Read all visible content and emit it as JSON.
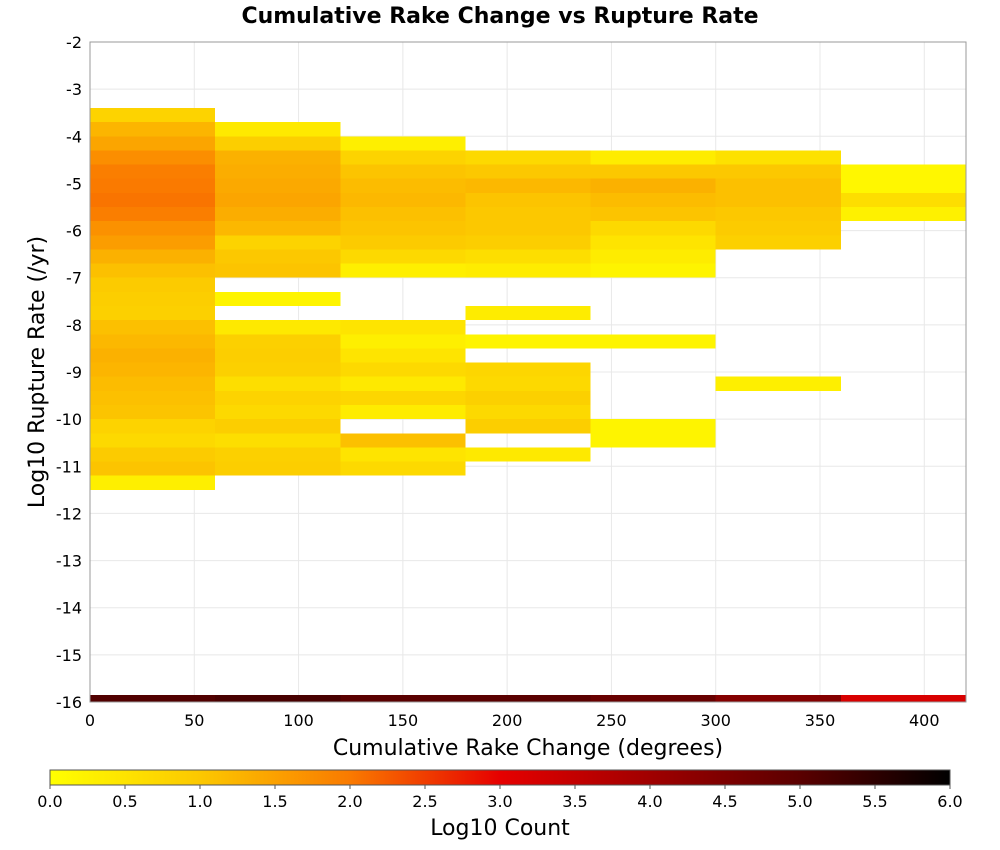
{
  "chart_data": {
    "type": "heatmap",
    "title": "Cumulative Rake Change vs Rupture Rate",
    "xlabel": "Cumulative Rake Change (degrees)",
    "ylabel": "Log10 Rupture Rate (/yr)",
    "xlim": [
      0,
      420
    ],
    "ylim": [
      -16,
      -2
    ],
    "x_bin_width": 60,
    "y_bin_height": 0.3,
    "x_ticks": [
      0,
      50,
      100,
      150,
      200,
      250,
      300,
      350,
      400
    ],
    "y_ticks": [
      -2,
      -3,
      -4,
      -5,
      -6,
      -7,
      -8,
      -9,
      -10,
      -11,
      -12,
      -13,
      -14,
      -15,
      -16
    ],
    "grid": true,
    "colorbar": {
      "label": "Log10 Count",
      "range": [
        0.0,
        6.0
      ],
      "ticks": [
        0.0,
        0.5,
        1.0,
        1.5,
        2.0,
        2.5,
        3.0,
        3.5,
        4.0,
        4.5,
        5.0,
        5.5,
        6.0
      ],
      "stops": [
        {
          "v": 0.0,
          "color": "#ffff00"
        },
        {
          "v": 1.0,
          "color": "#fcc800"
        },
        {
          "v": 2.0,
          "color": "#fa7a00"
        },
        {
          "v": 3.0,
          "color": "#e60000"
        },
        {
          "v": 4.0,
          "color": "#a00000"
        },
        {
          "v": 5.0,
          "color": "#5a0000"
        },
        {
          "v": 6.0,
          "color": "#000000"
        }
      ]
    },
    "cells": [
      {
        "x": 0,
        "y": -3.55,
        "v": 0.8
      },
      {
        "x": 0,
        "y": -3.85,
        "v": 1.25
      },
      {
        "x": 0,
        "y": -4.15,
        "v": 1.45
      },
      {
        "x": 0,
        "y": -4.45,
        "v": 1.75
      },
      {
        "x": 0,
        "y": -4.75,
        "v": 1.95
      },
      {
        "x": 0,
        "y": -5.05,
        "v": 2.0
      },
      {
        "x": 0,
        "y": -5.35,
        "v": 2.05
      },
      {
        "x": 0,
        "y": -5.65,
        "v": 1.95
      },
      {
        "x": 0,
        "y": -5.95,
        "v": 1.7
      },
      {
        "x": 0,
        "y": -6.25,
        "v": 1.55
      },
      {
        "x": 0,
        "y": -6.55,
        "v": 1.3
      },
      {
        "x": 0,
        "y": -6.85,
        "v": 1.1
      },
      {
        "x": 0,
        "y": -7.15,
        "v": 0.95
      },
      {
        "x": 0,
        "y": -7.45,
        "v": 0.9
      },
      {
        "x": 0,
        "y": -7.75,
        "v": 0.85
      },
      {
        "x": 0,
        "y": -8.05,
        "v": 1.1
      },
      {
        "x": 0,
        "y": -8.35,
        "v": 1.2
      },
      {
        "x": 0,
        "y": -8.65,
        "v": 1.3
      },
      {
        "x": 0,
        "y": -8.95,
        "v": 1.25
      },
      {
        "x": 0,
        "y": -9.25,
        "v": 1.15
      },
      {
        "x": 0,
        "y": -9.55,
        "v": 1.1
      },
      {
        "x": 0,
        "y": -9.85,
        "v": 1.05
      },
      {
        "x": 0,
        "y": -10.15,
        "v": 0.8
      },
      {
        "x": 0,
        "y": -10.45,
        "v": 0.7
      },
      {
        "x": 0,
        "y": -10.75,
        "v": 0.95
      },
      {
        "x": 0,
        "y": -11.05,
        "v": 1.05
      },
      {
        "x": 0,
        "y": -11.35,
        "v": 0.3
      },
      {
        "x": 60,
        "y": -3.85,
        "v": 0.4
      },
      {
        "x": 60,
        "y": -4.15,
        "v": 0.9
      },
      {
        "x": 60,
        "y": -4.45,
        "v": 1.3
      },
      {
        "x": 60,
        "y": -4.75,
        "v": 1.35
      },
      {
        "x": 60,
        "y": -5.05,
        "v": 1.4
      },
      {
        "x": 60,
        "y": -5.35,
        "v": 1.45
      },
      {
        "x": 60,
        "y": -5.65,
        "v": 1.35
      },
      {
        "x": 60,
        "y": -5.95,
        "v": 1.2
      },
      {
        "x": 60,
        "y": -6.25,
        "v": 0.8
      },
      {
        "x": 60,
        "y": -6.55,
        "v": 1.0
      },
      {
        "x": 60,
        "y": -6.85,
        "v": 1.05
      },
      {
        "x": 60,
        "y": -7.45,
        "v": 0.2
      },
      {
        "x": 60,
        "y": -8.05,
        "v": 0.4
      },
      {
        "x": 60,
        "y": -8.35,
        "v": 0.85
      },
      {
        "x": 60,
        "y": -8.65,
        "v": 0.9
      },
      {
        "x": 60,
        "y": -8.95,
        "v": 0.85
      },
      {
        "x": 60,
        "y": -9.25,
        "v": 0.6
      },
      {
        "x": 60,
        "y": -9.55,
        "v": 0.8
      },
      {
        "x": 60,
        "y": -9.85,
        "v": 0.7
      },
      {
        "x": 60,
        "y": -10.15,
        "v": 0.9
      },
      {
        "x": 60,
        "y": -10.45,
        "v": 0.6
      },
      {
        "x": 60,
        "y": -10.75,
        "v": 0.85
      },
      {
        "x": 60,
        "y": -11.05,
        "v": 0.9
      },
      {
        "x": 120,
        "y": -4.15,
        "v": 0.3
      },
      {
        "x": 120,
        "y": -4.45,
        "v": 0.8
      },
      {
        "x": 120,
        "y": -4.75,
        "v": 1.05
      },
      {
        "x": 120,
        "y": -5.05,
        "v": 1.15
      },
      {
        "x": 120,
        "y": -5.35,
        "v": 1.2
      },
      {
        "x": 120,
        "y": -5.65,
        "v": 1.1
      },
      {
        "x": 120,
        "y": -5.95,
        "v": 1.05
      },
      {
        "x": 120,
        "y": -6.25,
        "v": 0.95
      },
      {
        "x": 120,
        "y": -6.55,
        "v": 0.7
      },
      {
        "x": 120,
        "y": -6.85,
        "v": 0.3
      },
      {
        "x": 120,
        "y": -8.05,
        "v": 0.5
      },
      {
        "x": 120,
        "y": -8.35,
        "v": 0.3
      },
      {
        "x": 120,
        "y": -8.65,
        "v": 0.5
      },
      {
        "x": 120,
        "y": -8.95,
        "v": 0.7
      },
      {
        "x": 120,
        "y": -9.25,
        "v": 0.4
      },
      {
        "x": 120,
        "y": -9.55,
        "v": 0.75
      },
      {
        "x": 120,
        "y": -9.85,
        "v": 0.35
      },
      {
        "x": 120,
        "y": -10.45,
        "v": 1.1
      },
      {
        "x": 120,
        "y": -10.75,
        "v": 0.5
      },
      {
        "x": 120,
        "y": -11.05,
        "v": 0.7
      },
      {
        "x": 180,
        "y": -4.45,
        "v": 0.7
      },
      {
        "x": 180,
        "y": -4.75,
        "v": 1.0
      },
      {
        "x": 180,
        "y": -5.05,
        "v": 1.2
      },
      {
        "x": 180,
        "y": -5.35,
        "v": 1.05
      },
      {
        "x": 180,
        "y": -5.65,
        "v": 1.0
      },
      {
        "x": 180,
        "y": -5.95,
        "v": 1.0
      },
      {
        "x": 180,
        "y": -6.25,
        "v": 0.9
      },
      {
        "x": 180,
        "y": -6.55,
        "v": 0.6
      },
      {
        "x": 180,
        "y": -6.85,
        "v": 0.35
      },
      {
        "x": 180,
        "y": -7.75,
        "v": 0.35
      },
      {
        "x": 180,
        "y": -8.35,
        "v": 0.2
      },
      {
        "x": 180,
        "y": -8.95,
        "v": 0.75
      },
      {
        "x": 180,
        "y": -9.25,
        "v": 0.7
      },
      {
        "x": 180,
        "y": -9.55,
        "v": 0.85
      },
      {
        "x": 180,
        "y": -9.85,
        "v": 0.7
      },
      {
        "x": 180,
        "y": -10.15,
        "v": 0.9
      },
      {
        "x": 180,
        "y": -10.75,
        "v": 0.4
      },
      {
        "x": 240,
        "y": -4.45,
        "v": 0.35
      },
      {
        "x": 240,
        "y": -4.75,
        "v": 1.0
      },
      {
        "x": 240,
        "y": -5.05,
        "v": 1.3
      },
      {
        "x": 240,
        "y": -5.35,
        "v": 1.15
      },
      {
        "x": 240,
        "y": -5.65,
        "v": 1.05
      },
      {
        "x": 240,
        "y": -5.95,
        "v": 0.7
      },
      {
        "x": 240,
        "y": -6.25,
        "v": 0.5
      },
      {
        "x": 240,
        "y": -6.55,
        "v": 0.35
      },
      {
        "x": 240,
        "y": -6.85,
        "v": 0.2
      },
      {
        "x": 240,
        "y": -8.35,
        "v": 0.2
      },
      {
        "x": 240,
        "y": -10.15,
        "v": 0.2
      },
      {
        "x": 240,
        "y": -10.45,
        "v": 0.2
      },
      {
        "x": 300,
        "y": -4.45,
        "v": 0.55
      },
      {
        "x": 300,
        "y": -4.75,
        "v": 1.0
      },
      {
        "x": 300,
        "y": -5.05,
        "v": 1.1
      },
      {
        "x": 300,
        "y": -5.35,
        "v": 1.1
      },
      {
        "x": 300,
        "y": -5.65,
        "v": 1.0
      },
      {
        "x": 300,
        "y": -5.95,
        "v": 0.95
      },
      {
        "x": 300,
        "y": -6.25,
        "v": 0.85
      },
      {
        "x": 300,
        "y": -9.25,
        "v": 0.3
      },
      {
        "x": 360,
        "y": -4.75,
        "v": 0.15
      },
      {
        "x": 360,
        "y": -5.05,
        "v": 0.15
      },
      {
        "x": 360,
        "y": -5.35,
        "v": 0.6
      },
      {
        "x": 360,
        "y": -5.65,
        "v": 0.25
      }
    ],
    "marginal_strip": [
      {
        "x": 0,
        "v": 5.1
      },
      {
        "x": 60,
        "v": 5.2
      },
      {
        "x": 120,
        "v": 5.0
      },
      {
        "x": 180,
        "v": 5.0
      },
      {
        "x": 240,
        "v": 4.8
      },
      {
        "x": 300,
        "v": 4.4
      },
      {
        "x": 360,
        "v": 3.2
      }
    ]
  }
}
